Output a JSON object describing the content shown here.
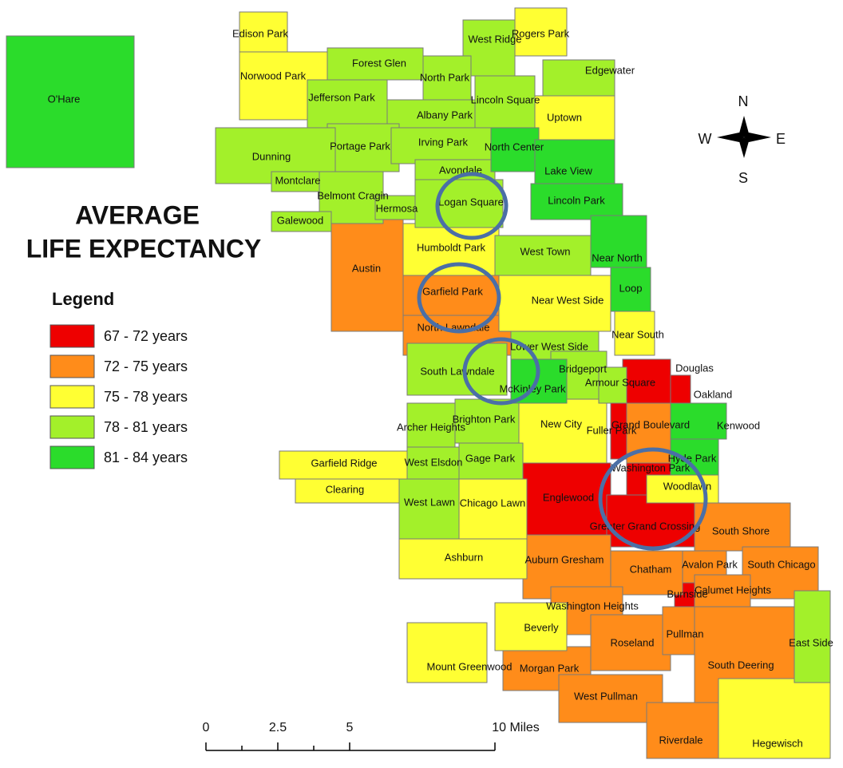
{
  "title": [
    "AVERAGE",
    "LIFE EXPECTANCY"
  ],
  "legend": {
    "title": "Legend",
    "classes": [
      {
        "label": "67 - 72 years",
        "color": "#ee0000",
        "areas": [
          "Douglas",
          "Oakland",
          "Fuller Park",
          "Englewood",
          "Washington Park",
          "Greater Grand Crossing",
          "Burnside"
        ]
      },
      {
        "label": "72 - 75 years",
        "color": "#ff8c1a",
        "areas": [
          "Austin",
          "Garfield Park",
          "North Lawndale",
          "Grand Boulevard",
          "South Shore",
          "South Chicago",
          "Auburn Gresham",
          "Chatham",
          "Avalon Park",
          "Calumet Heights",
          "Washington Heights",
          "Roseland",
          "Pullman",
          "South Deering",
          "Morgan Park",
          "West Pullman",
          "Riverdale"
        ]
      },
      {
        "label": "75 - 78 years",
        "color": "#ffff33",
        "areas": [
          "Edison Park",
          "Rogers Park",
          "Norwood Park",
          "Uptown",
          "Humboldt Park",
          "Near West Side",
          "Near South",
          "New City",
          "Garfield Ridge",
          "Clearing",
          "Chicago Lawn",
          "Ashburn",
          "Woodlawn",
          "Beverly",
          "Mount Greenwood",
          "Hegewisch"
        ]
      },
      {
        "label": "78 - 81 years",
        "color": "#a3f02a",
        "areas": [
          "West Ridge",
          "Forest Glen",
          "North Park",
          "Jefferson Park",
          "Lincoln Square",
          "Albany Park",
          "Portage Park",
          "Irving Park",
          "Dunning",
          "Montclare",
          "Belmont Cragin",
          "Hermosa",
          "Avondale",
          "Logan Square",
          "Galewood",
          "West Town",
          "Lower West Side",
          "South Lawndale",
          "Bridgeport",
          "Armour Square",
          "Archer Heights",
          "Brighton Park",
          "West Elsdon",
          "Gage Park",
          "West Lawn",
          "Edgewater",
          "East Side"
        ]
      },
      {
        "label": "81 - 84 years",
        "color": "#2bdc2b",
        "areas": [
          "O'Hare",
          "North Center",
          "Lake View",
          "Lincoln Park",
          "Near North",
          "Loop",
          "McKinley Park",
          "Hyde Park",
          "Kenwood"
        ]
      }
    ]
  },
  "compass": {
    "n": "N",
    "e": "E",
    "s": "S",
    "w": "W"
  },
  "scale": [
    "0",
    "2.5",
    "5",
    "10 Miles"
  ]
}
